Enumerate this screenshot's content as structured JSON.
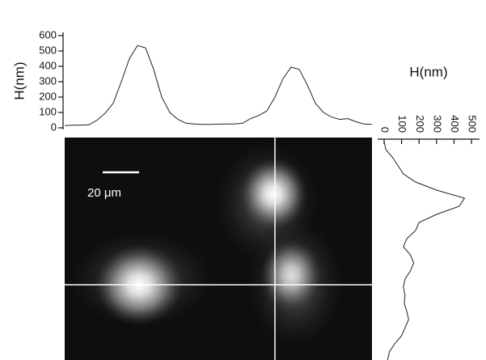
{
  "chart_data": [
    {
      "type": "line",
      "orientation": "horizontal",
      "y_label": "H(nm)",
      "color": "#222",
      "values": [
        15,
        17,
        18,
        20,
        50,
        95,
        160,
        300,
        450,
        535,
        520,
        380,
        200,
        100,
        55,
        30,
        25,
        22,
        22,
        24,
        25,
        25,
        30,
        60,
        80,
        110,
        200,
        320,
        395,
        380,
        280,
        160,
        100,
        70,
        55,
        60,
        40,
        25,
        22
      ],
      "ylim": [
        0,
        600
      ],
      "yticks": [
        0,
        100,
        200,
        300,
        400,
        500,
        600
      ]
    },
    {
      "type": "line",
      "orientation": "vertical",
      "x_label": "H(nm)",
      "color": "#222",
      "values": [
        0,
        10,
        50,
        80,
        110,
        180,
        300,
        460,
        430,
        300,
        200,
        180,
        130,
        110,
        150,
        170,
        150,
        120,
        110,
        120,
        115,
        130,
        140,
        120,
        100,
        60,
        30,
        20
      ],
      "xlim": [
        -37,
        546
      ],
      "xticks": [
        0,
        100,
        200,
        300,
        400,
        500
      ]
    }
  ],
  "image": {
    "scale_bar_label": "20 μm"
  }
}
